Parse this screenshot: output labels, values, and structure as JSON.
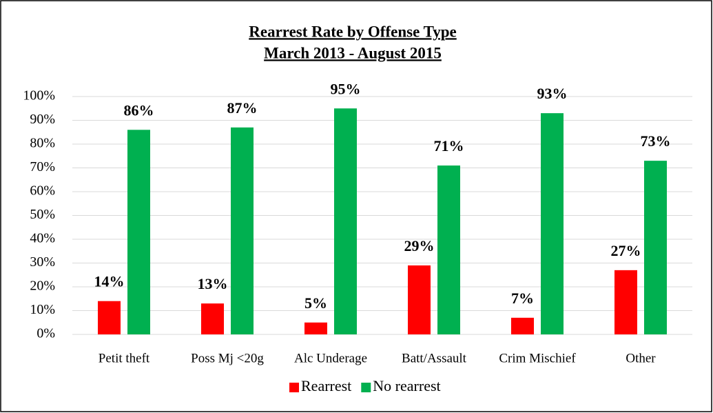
{
  "chart_data": {
    "type": "bar",
    "title": "Rearrest Rate by Offense Type",
    "subtitle": "March 2013 - August 2015",
    "categories": [
      "Petit theft",
      "Poss Mj <20g",
      "Alc Underage",
      "Batt/Assault",
      "Crim Mischief",
      "Other"
    ],
    "series": [
      {
        "name": "Rearrest",
        "color": "#ff0000",
        "values": [
          14,
          13,
          5,
          29,
          7,
          27
        ],
        "value_labels": [
          "14%",
          "13%",
          "5%",
          "29%",
          "7%",
          "27%"
        ]
      },
      {
        "name": "No rearrest",
        "color": "#00b050",
        "values": [
          86,
          87,
          95,
          71,
          93,
          73
        ],
        "value_labels": [
          "86%",
          "87%",
          "95%",
          "71%",
          "93%",
          "73%"
        ]
      }
    ],
    "ylim": [
      0,
      100
    ],
    "yticks": [
      {
        "value": 0,
        "label": "0%"
      },
      {
        "value": 10,
        "label": "10%"
      },
      {
        "value": 20,
        "label": "20%"
      },
      {
        "value": 30,
        "label": "30%"
      },
      {
        "value": 40,
        "label": "40%"
      },
      {
        "value": 50,
        "label": "50%"
      },
      {
        "value": 60,
        "label": "60%"
      },
      {
        "value": 70,
        "label": "70%"
      },
      {
        "value": 80,
        "label": "80%"
      },
      {
        "value": 90,
        "label": "90%"
      },
      {
        "value": 100,
        "label": "100%"
      }
    ],
    "grid": true,
    "legend": "bottom"
  }
}
